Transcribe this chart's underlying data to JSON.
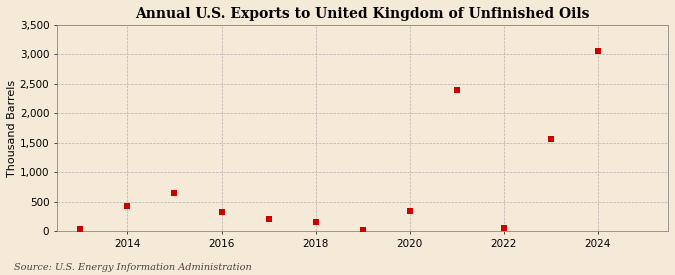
{
  "title": "Annual U.S. Exports to United Kingdom of Unfinished Oils",
  "ylabel": "Thousand Barrels",
  "source": "Source: U.S. Energy Information Administration",
  "years": [
    2013,
    2014,
    2015,
    2016,
    2017,
    2018,
    2019,
    2020,
    2021,
    2022,
    2023,
    2024
  ],
  "values": [
    30,
    420,
    640,
    330,
    200,
    150,
    20,
    350,
    2400,
    50,
    1570,
    3050
  ],
  "ylim": [
    0,
    3500
  ],
  "yticks": [
    0,
    500,
    1000,
    1500,
    2000,
    2500,
    3000,
    3500
  ],
  "xlim": [
    2012.5,
    2025.5
  ],
  "xticks": [
    2014,
    2016,
    2018,
    2020,
    2022,
    2024
  ],
  "marker_color": "#cc0000",
  "marker": "s",
  "marker_size": 4,
  "bg_color": "#f5ead8",
  "grid_color": "#999999",
  "title_fontsize": 10,
  "label_fontsize": 8,
  "tick_fontsize": 7.5,
  "source_fontsize": 7
}
